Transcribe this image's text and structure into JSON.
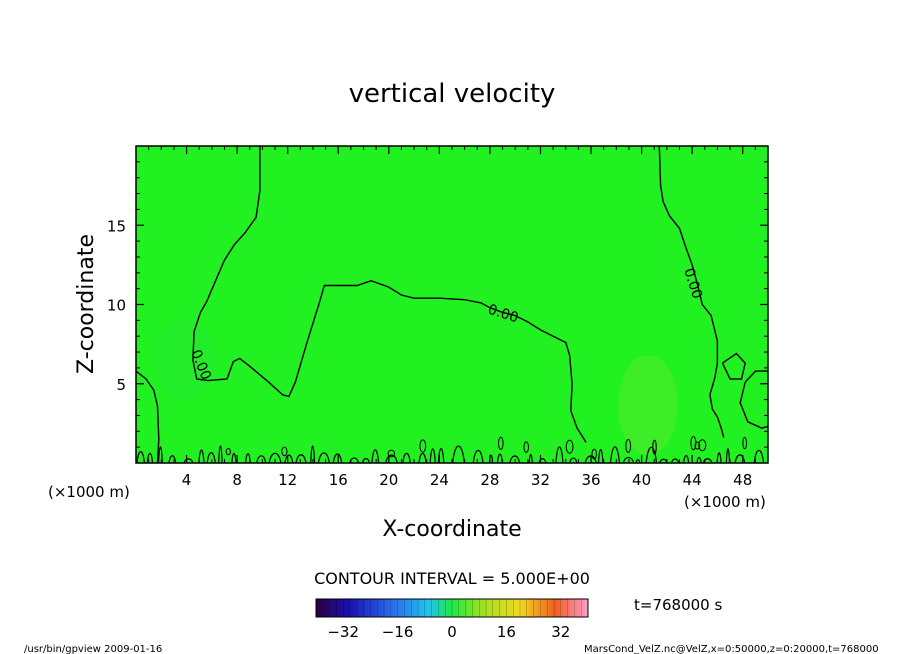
{
  "chart_data": {
    "type": "contour",
    "title": "vertical velocity",
    "xlabel": "X-coordinate",
    "ylabel": "Z-coordinate",
    "x_unit_left": "(×1000 m)",
    "x_unit_right": "(×1000 m)",
    "xlim": [
      0,
      50
    ],
    "ylim": [
      0,
      20
    ],
    "xticks": [
      4,
      8,
      12,
      16,
      20,
      24,
      28,
      32,
      36,
      40,
      44,
      48
    ],
    "yticks": [
      5,
      10,
      15
    ],
    "contour_label": "0.00",
    "contour_interval_text": "CONTOUR INTERVAL = 5.000E+00",
    "time_text": "t=768000 s",
    "colorbar": {
      "min": -40,
      "max": 40,
      "ticks": [
        -32,
        -16,
        0,
        16,
        32
      ]
    },
    "field_color": "#21f021",
    "footer_left": "/usr/bin/gpview   2009-01-16",
    "footer_right": "MarsCond_VelZ.nc@VelZ,x=0:50000,z=0:20000,t=768000",
    "contours": [
      {
        "name": "left-boundary",
        "points": [
          [
            0,
            5.8
          ],
          [
            0.8,
            5.3
          ],
          [
            1.4,
            4.6
          ],
          [
            1.7,
            3.6
          ],
          [
            1.8,
            1.5
          ],
          [
            1.7,
            0
          ]
        ]
      },
      {
        "name": "left-dome",
        "points": [
          [
            9.8,
            20
          ],
          [
            9.8,
            17.2
          ],
          [
            9.5,
            15.5
          ],
          [
            8.6,
            14.5
          ],
          [
            7.8,
            13.8
          ],
          [
            7,
            12.8
          ],
          [
            6.3,
            11.5
          ],
          [
            5.6,
            10.2
          ],
          [
            5.1,
            9.5
          ],
          [
            4.6,
            8.3
          ],
          [
            4.5,
            6.5
          ],
          [
            4.8,
            5.3
          ],
          [
            5.7,
            5.2
          ],
          [
            7.2,
            5.3
          ],
          [
            7.7,
            6.4
          ],
          [
            8.2,
            6.6
          ],
          [
            9,
            6.1
          ],
          [
            10.5,
            5.1
          ],
          [
            11.6,
            4.3
          ],
          [
            12.1,
            4.2
          ],
          [
            12.6,
            5.1
          ],
          [
            13.6,
            7.8
          ],
          [
            14.5,
            10.1
          ],
          [
            14.9,
            11.2
          ],
          [
            16.3,
            11.2
          ],
          [
            17.5,
            11.2
          ],
          [
            18.6,
            11.5
          ],
          [
            20,
            11.1
          ],
          [
            21,
            10.6
          ],
          [
            22,
            10.4
          ],
          [
            24,
            10.4
          ],
          [
            26,
            10.3
          ],
          [
            27.3,
            10.1
          ],
          [
            28,
            9.8
          ],
          [
            29,
            9.5
          ],
          [
            30,
            9.3
          ],
          [
            31,
            8.9
          ],
          [
            32,
            8.4
          ],
          [
            33,
            8
          ],
          [
            34,
            7.6
          ],
          [
            34.3,
            6.8
          ],
          [
            34.5,
            5
          ],
          [
            34.4,
            3.3
          ],
          [
            34.9,
            2.2
          ],
          [
            35.3,
            1.7
          ],
          [
            35.6,
            1.3
          ]
        ]
      },
      {
        "name": "right-dome",
        "points": [
          [
            41.4,
            20
          ],
          [
            41.5,
            17.5
          ],
          [
            41.7,
            16.5
          ],
          [
            42.2,
            15.6
          ],
          [
            43,
            14.8
          ],
          [
            43.5,
            13.6
          ],
          [
            44,
            12.5
          ],
          [
            44.5,
            11
          ],
          [
            44.8,
            10
          ],
          [
            45.5,
            9.3
          ],
          [
            46,
            7.7
          ],
          [
            46,
            6.3
          ],
          [
            45.8,
            5.4
          ],
          [
            45.4,
            4.3
          ],
          [
            45.6,
            3.4
          ],
          [
            46,
            2.9
          ],
          [
            46.3,
            2.2
          ],
          [
            46.5,
            1.6
          ]
        ]
      },
      {
        "name": "right-loop",
        "points": [
          [
            46.4,
            6.3
          ],
          [
            47.5,
            6.9
          ],
          [
            48.2,
            6.3
          ],
          [
            47.9,
            5.3
          ],
          [
            47,
            5.3
          ],
          [
            46.4,
            6.3
          ]
        ]
      },
      {
        "name": "right-boundary",
        "points": [
          [
            50,
            5.8
          ],
          [
            49,
            5.8
          ],
          [
            48.2,
            5.1
          ],
          [
            47.8,
            3.8
          ],
          [
            48.4,
            2.6
          ],
          [
            49.5,
            2.2
          ],
          [
            50,
            2.3
          ]
        ]
      }
    ]
  }
}
